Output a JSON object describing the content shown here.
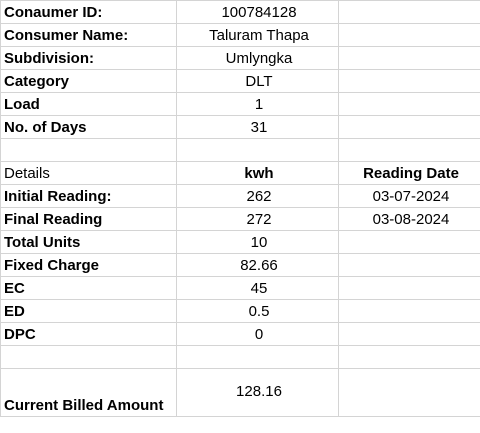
{
  "consumer": {
    "id_label": "Conaumer ID:",
    "id_value": "100784128",
    "name_label": "Consumer Name:",
    "name_value": "Taluram Thapa",
    "subdivision_label": "Subdivision:",
    "subdivision_value": "Umlyngka",
    "category_label": "Category",
    "category_value": "DLT",
    "load_label": "Load",
    "load_value": "1",
    "days_label": "No. of Days",
    "days_value": "31"
  },
  "details": {
    "header_label": "Details",
    "header_kwh": "kwh",
    "header_date": "Reading Date",
    "initial_label": "Initial Reading:",
    "initial_value": "262",
    "initial_date": "03-07-2024",
    "final_label": "Final Reading",
    "final_value": "272",
    "final_date": "03-08-2024",
    "units_label": "Total Units",
    "units_value": "10",
    "fixed_label": "Fixed Charge",
    "fixed_value": "82.66",
    "ec_label": "EC",
    "ec_value": "45",
    "ed_label": "ED",
    "ed_value": "0.5",
    "dpc_label": "DPC",
    "dpc_value": "0"
  },
  "summary": {
    "amount_label": "Current Billed Amount",
    "amount_value": "128.16"
  }
}
